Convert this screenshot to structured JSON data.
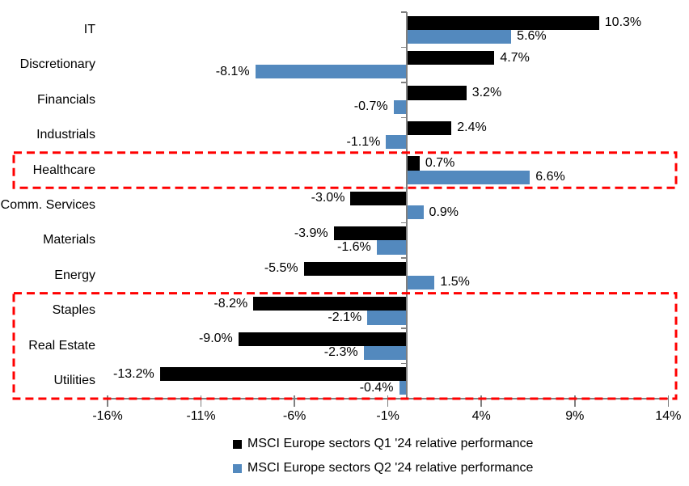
{
  "chart_data": {
    "type": "bar",
    "orientation": "horizontal",
    "title": "",
    "categories": [
      "IT",
      "Discretionary",
      "Financials",
      "Industrials",
      "Healthcare",
      "Comm. Services",
      "Materials",
      "Energy",
      "Staples",
      "Real Estate",
      "Utilities"
    ],
    "series": [
      {
        "name": "MSCI Europe sectors Q1 '24 relative performance",
        "color": "#000000",
        "values": [
          10.3,
          4.7,
          3.2,
          2.4,
          0.7,
          -3.0,
          -3.9,
          -5.5,
          -8.2,
          -9.0,
          -13.2
        ],
        "labels": [
          "10.3%",
          "4.7%",
          "3.2%",
          "2.4%",
          "0.7%",
          "-3.0%",
          "-3.9%",
          "-5.5%",
          "-8.2%",
          "-9.0%",
          "-13.2%"
        ]
      },
      {
        "name": "MSCI Europe sectors Q2 '24 relative performance",
        "color": "#5389BE",
        "values": [
          5.6,
          -8.1,
          -0.7,
          -1.1,
          6.6,
          0.9,
          -1.6,
          1.5,
          -2.1,
          -2.3,
          -0.4
        ],
        "labels": [
          "5.6%",
          "-8.1%",
          "-0.7%",
          "-1.1%",
          "6.6%",
          "0.9%",
          "-1.6%",
          "1.5%",
          "-2.1%",
          "-2.3%",
          "-0.4%"
        ]
      }
    ],
    "x_tick_labels": [
      "-16%",
      "-11%",
      "-6%",
      "-1%",
      "4%",
      "9%",
      "14%"
    ],
    "xlim": [
      -16,
      14
    ],
    "grid": false,
    "legend_position": "bottom",
    "axis_color": "#808080",
    "highlight_boxes": [
      {
        "categories": [
          "Healthcare"
        ],
        "color": "#FF0000",
        "style": "dashed"
      },
      {
        "categories": [
          "Staples",
          "Real Estate",
          "Utilities"
        ],
        "color": "#FF0000",
        "style": "dashed"
      }
    ]
  }
}
